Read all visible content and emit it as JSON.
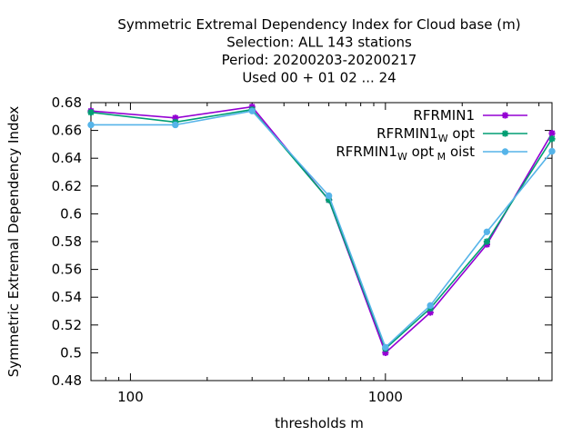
{
  "chart_data": {
    "type": "line",
    "title_lines": [
      "Symmetric Extremal Dependency Index  for Cloud base (m)",
      "Selection: ALL    143 stations",
      "Period: 20200203-20200217",
      "Used  00 + 01 02 ... 24"
    ],
    "xlabel": "thresholds m",
    "ylabel": "Symmetric Extremal Dependency Index",
    "x_scale": "log",
    "xlim": [
      70,
      4500
    ],
    "ylim": [
      0.48,
      0.68
    ],
    "x_ticks_major": [
      100,
      1000
    ],
    "x_tick_labels": [
      "100",
      "1000"
    ],
    "y_ticks": [
      0.48,
      0.5,
      0.52,
      0.54,
      0.56,
      0.58,
      0.6,
      0.62,
      0.64,
      0.66,
      0.68
    ],
    "y_tick_labels": [
      "0.48",
      "0.5",
      "0.52",
      "0.54",
      "0.56",
      "0.58",
      "0.6",
      "0.62",
      "0.64",
      "0.66",
      "0.68"
    ],
    "grid": false,
    "legend_position": "top-right",
    "x": [
      70,
      150,
      300,
      600,
      1000,
      1500,
      2500,
      4500
    ],
    "series": [
      {
        "legend_main": "RFRMIN1",
        "legend_parts": [],
        "color": "#9400d3",
        "marker": "star",
        "values": [
          0.674,
          0.669,
          0.677,
          0.61,
          0.5,
          0.529,
          0.578,
          0.658
        ]
      },
      {
        "legend_main": "RFRMIN1",
        "legend_parts": [
          [
            "W",
            "sub"
          ],
          [
            " opt",
            "base"
          ]
        ],
        "color": "#009e73",
        "marker": "star",
        "values": [
          0.673,
          0.666,
          0.675,
          0.61,
          0.503,
          0.532,
          0.58,
          0.654
        ]
      },
      {
        "legend_main": "RFRMIN1",
        "legend_parts": [
          [
            "W",
            "sub"
          ],
          [
            " opt",
            "base"
          ],
          [
            " M",
            "sub"
          ],
          [
            " oist",
            "base"
          ]
        ],
        "color": "#56b4e9",
        "marker": "circle",
        "values": [
          0.664,
          0.664,
          0.674,
          0.613,
          0.504,
          0.534,
          0.587,
          0.645
        ]
      }
    ]
  }
}
